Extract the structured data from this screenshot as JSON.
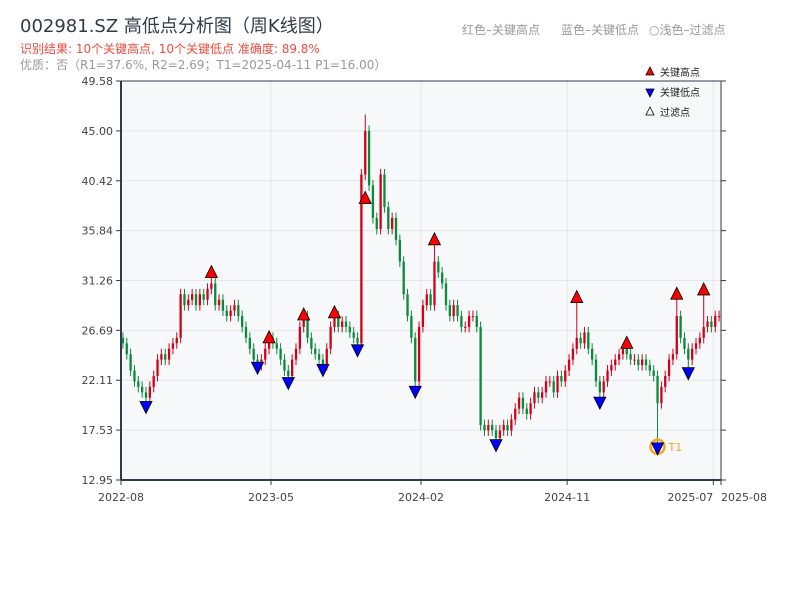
{
  "header": {
    "title": "002981.SZ 高低点分析图（周K线图）",
    "result": "识别结果: 10个关键高点, 10个关键低点   准确度: 89.8%",
    "quality": "优质：否（R1=37.6%, R2=2.69；T1=2025-04-11 P1=16.00）",
    "hint_red": "红色–关键高点",
    "hint_blue": "蓝色–关键低点",
    "hint_light": "○浅色–过滤点"
  },
  "colors": {
    "up": "#d0021b",
    "down": "#0a8a3a",
    "high_marker": "#ff0000",
    "low_marker": "#0000ff",
    "t1": "#f5a623",
    "grid": "#e3e6ea",
    "plot_bg": "#f7f8fa",
    "axis": "#2f3b4a"
  },
  "chart_data": {
    "type": "candlestick",
    "title": "002981.SZ 高低点分析图（周K线图）",
    "ylim": [
      12.95,
      49.58
    ],
    "yticks": [
      "12.95",
      "17.53",
      "22.11",
      "26.69",
      "31.26",
      "35.84",
      "40.42",
      "45.00",
      "49.58"
    ],
    "xticks": [
      {
        "label": "2022-08",
        "week": 0
      },
      {
        "label": "2023-05",
        "week": 39
      },
      {
        "label": "2024-02",
        "week": 78
      },
      {
        "label": "2024-11",
        "week": 116
      },
      {
        "label": "2025-07",
        "week": 154
      },
      {
        "label": "2025-08",
        "week": 156
      }
    ],
    "weeks": 156,
    "first_open": 26,
    "close": [
      25.5,
      24.5,
      23,
      22,
      21.5,
      21,
      20.5,
      21.5,
      22.5,
      24,
      24.5,
      24,
      25,
      25.5,
      26,
      30,
      29,
      29.5,
      30,
      29,
      30,
      29.5,
      30.5,
      31,
      29,
      29.5,
      28.5,
      28,
      28.5,
      29,
      28,
      27,
      26,
      25,
      24,
      23.5,
      24,
      25,
      26,
      25.5,
      25,
      24,
      23,
      22.5,
      24,
      25,
      27,
      28,
      26,
      25,
      24.5,
      24,
      23.5,
      25,
      27,
      28,
      27,
      27.5,
      27,
      26.5,
      26,
      25.5,
      41,
      45,
      40,
      37,
      36,
      41,
      38,
      36,
      37,
      35,
      33,
      30,
      28,
      26,
      22,
      27,
      29,
      30,
      29,
      33,
      32,
      31,
      29,
      28,
      29,
      28,
      27,
      27,
      28,
      28,
      27,
      18,
      17.5,
      18,
      17.5,
      16.8,
      17.5,
      18,
      17.5,
      18.5,
      19.5,
      20.5,
      19.5,
      19,
      20,
      21,
      20.5,
      21,
      22,
      22,
      21,
      22.5,
      22,
      23,
      24,
      25,
      26,
      25.5,
      26.5,
      25,
      24,
      22,
      21,
      22,
      23,
      23.5,
      24,
      24.5,
      25,
      24.5,
      24,
      24,
      23.5,
      24,
      23.5,
      23,
      22.5,
      20,
      21.5,
      22.5,
      24,
      24.5,
      28,
      26,
      25,
      24,
      25,
      25.5,
      26,
      27,
      27.5,
      27,
      28,
      28
    ],
    "key_highs": [
      {
        "week": 23,
        "price": 32.0
      },
      {
        "week": 38,
        "price": 26.0
      },
      {
        "week": 47,
        "price": 28.1
      },
      {
        "week": 55,
        "price": 28.3
      },
      {
        "week": 63,
        "price": 46.5
      },
      {
        "week": 81,
        "price": 35.0
      },
      {
        "week": 118,
        "price": 29.7
      },
      {
        "week": 131,
        "price": 25.5
      },
      {
        "week": 144,
        "price": 30.0
      },
      {
        "week": 151,
        "price": 30.4
      }
    ],
    "key_lows": [
      {
        "week": 6,
        "price": 19.7
      },
      {
        "week": 35,
        "price": 23.3
      },
      {
        "week": 43,
        "price": 21.9
      },
      {
        "week": 52,
        "price": 23.1
      },
      {
        "week": 61,
        "price": 24.9
      },
      {
        "week": 76,
        "price": 21.1
      },
      {
        "week": 97,
        "price": 16.2
      },
      {
        "week": 124,
        "price": 20.1
      },
      {
        "week": 139,
        "price": 15.9
      },
      {
        "week": 147,
        "price": 22.8
      }
    ],
    "t1": {
      "label": "T1",
      "week": 139,
      "price": 16.0,
      "date": "2025-04-11"
    },
    "legend": {
      "placement": "top-right",
      "items": [
        "关键高点",
        "关键低点",
        "过滤点"
      ]
    }
  }
}
